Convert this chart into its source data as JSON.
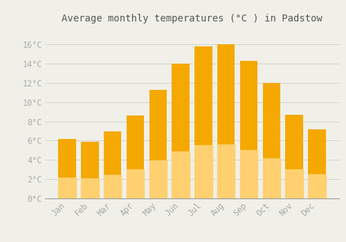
{
  "title": "Average monthly temperatures (°C ) in Padstow",
  "months": [
    "Jan",
    "Feb",
    "Mar",
    "Apr",
    "May",
    "Jun",
    "Jul",
    "Aug",
    "Sep",
    "Oct",
    "Nov",
    "Dec"
  ],
  "values": [
    6.2,
    5.9,
    7.0,
    8.6,
    11.3,
    14.0,
    15.8,
    16.0,
    14.3,
    12.0,
    8.7,
    7.2
  ],
  "bar_color_top": "#F5A800",
  "bar_color_bottom": "#FFD070",
  "background_color": "#F0F0E8",
  "grid_color": "#CCCCCC",
  "ylim": [
    0,
    17.6
  ],
  "yticks": [
    0,
    2,
    4,
    6,
    8,
    10,
    12,
    14,
    16
  ],
  "ytick_labels": [
    "0°C",
    "2°C",
    "4°C",
    "6°C",
    "8°C",
    "10°C",
    "12°C",
    "14°C",
    "16°C"
  ],
  "title_fontsize": 10,
  "tick_fontsize": 8.5,
  "tick_color": "#AAAAAA",
  "title_color": "#555555"
}
